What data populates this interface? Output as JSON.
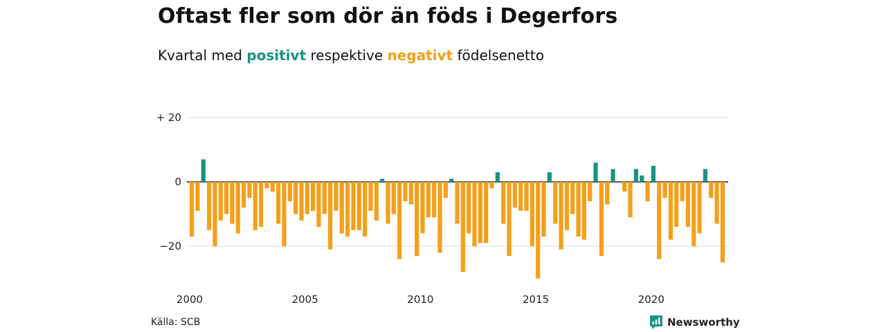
{
  "title": "Oftast fler som dör än föds i Degerfors",
  "subtitle": {
    "prefix": "Kvartal med",
    "positive_word": "positivt",
    "middle": "respektive",
    "negative_word": "negativt",
    "suffix": "födelsenetto"
  },
  "colors": {
    "positive": "#1a9480",
    "negative": "#f5a01a",
    "grid": "#dddddd",
    "axis": "#222222"
  },
  "source": "Källa: SCB",
  "brand": {
    "name": "Newsworthy",
    "icon": "newsworthy-logo-icon"
  },
  "chart_data": {
    "type": "bar",
    "x_start_year": 2000,
    "quarters_per_year": 4,
    "x_ticks": [
      "2000",
      "2005",
      "2010",
      "2015",
      "2020"
    ],
    "y_ticks": [
      {
        "value": 20,
        "label": "+ 20"
      },
      {
        "value": 0,
        "label": "0"
      },
      {
        "value": -20,
        "label": "−20"
      }
    ],
    "ylim": [
      -31,
      22
    ],
    "values": [
      -17,
      -9,
      7,
      -15,
      -20,
      -12,
      -10,
      -13,
      -16,
      -8,
      -5,
      -15,
      -14,
      -2,
      -3,
      -13,
      -20,
      -6,
      -10,
      -12,
      -10,
      -9,
      -14,
      -10,
      -21,
      -9,
      -16,
      -17,
      -15,
      -15,
      -17,
      -9,
      -12,
      1,
      -13,
      -10,
      -24,
      -6,
      -7,
      -23,
      -16,
      -11,
      -11,
      -22,
      -5,
      1,
      -13,
      -28,
      -16,
      -20,
      -19,
      -19,
      -2,
      3,
      -13,
      -23,
      -8,
      -9,
      -9,
      -20,
      -30,
      -17,
      3,
      -13,
      -21,
      -15,
      -10,
      -17,
      -18,
      -6,
      6,
      -23,
      -7,
      4,
      0,
      -3,
      -11,
      4,
      2,
      -6,
      5,
      -24,
      -5,
      -18,
      -14,
      -6,
      -14,
      -20,
      -16,
      4,
      -5,
      -13,
      -25
    ]
  }
}
